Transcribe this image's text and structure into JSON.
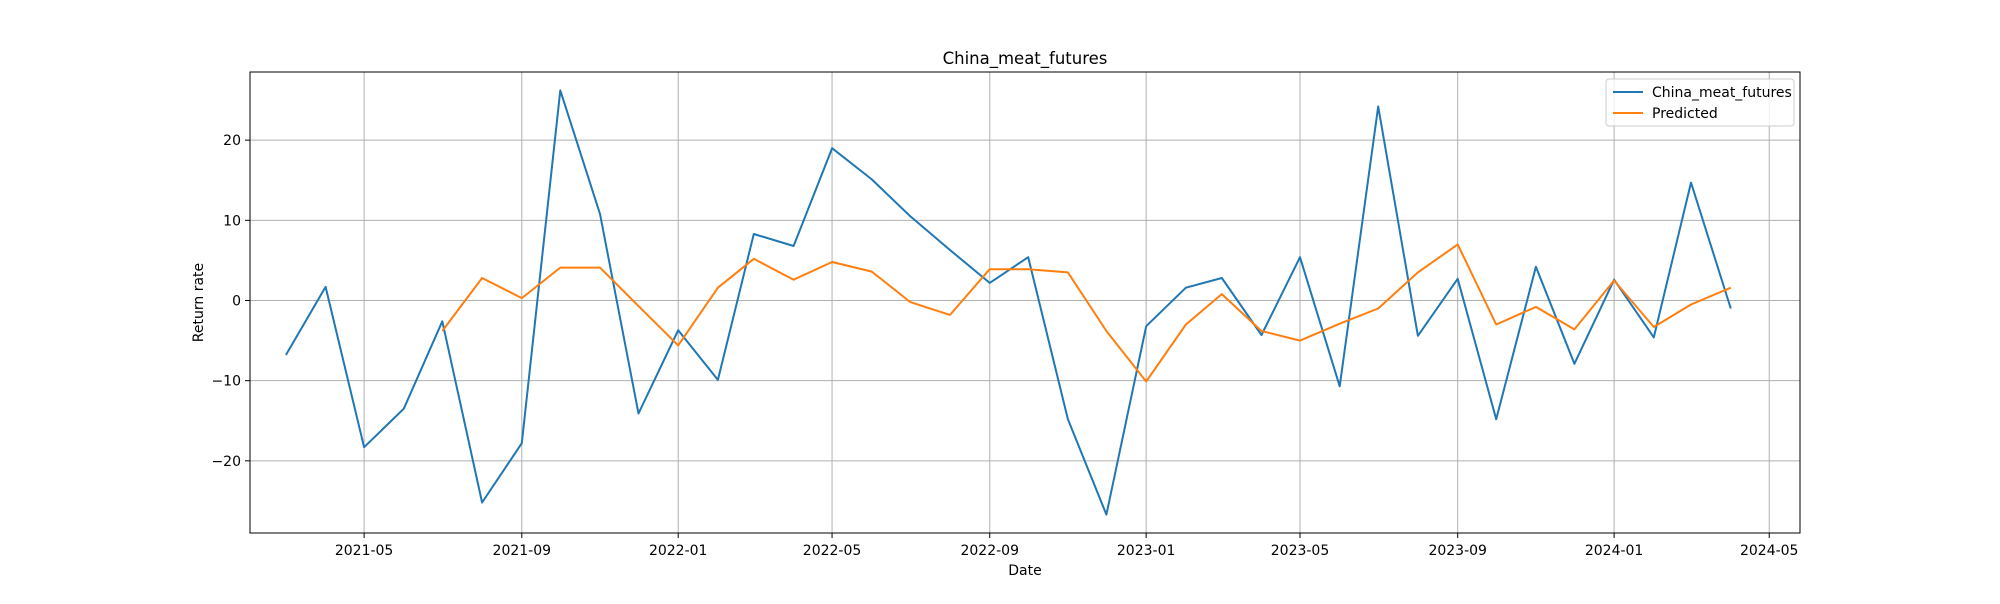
{
  "chart_data": {
    "type": "line",
    "title": "China_meat_futures",
    "xlabel": "Date",
    "ylabel": "Return rate",
    "grid": true,
    "legend_position": "top-right",
    "xlim": [
      "2021-02-01",
      "2024-05-25"
    ],
    "ylim": [
      -29,
      28.5
    ],
    "x_ticks": [
      "2021-05",
      "2021-09",
      "2022-01",
      "2022-05",
      "2022-09",
      "2023-01",
      "2023-05",
      "2023-09",
      "2024-01",
      "2024-05"
    ],
    "y_ticks": [
      -20,
      -10,
      0,
      10,
      20
    ],
    "y_tick_labels": [
      "−20",
      "−10",
      "0",
      "10",
      "20"
    ],
    "series": [
      {
        "name": "China_meat_futures",
        "color": "#1f77b4",
        "x": [
          "2021-03-01",
          "2021-04-01",
          "2021-05-01",
          "2021-06-01",
          "2021-07-01",
          "2021-08-01",
          "2021-09-01",
          "2021-10-01",
          "2021-11-01",
          "2021-12-01",
          "2022-01-01",
          "2022-02-01",
          "2022-03-01",
          "2022-04-01",
          "2022-05-01",
          "2022-06-01",
          "2022-07-01",
          "2022-08-01",
          "2022-09-01",
          "2022-10-01",
          "2022-11-01",
          "2022-12-01",
          "2023-01-01",
          "2023-02-01",
          "2023-03-01",
          "2023-04-01",
          "2023-05-01",
          "2023-06-01",
          "2023-07-01",
          "2023-08-01",
          "2023-09-01",
          "2023-10-01",
          "2023-11-01",
          "2023-12-01",
          "2024-01-01",
          "2024-02-01",
          "2024-03-01",
          "2024-04-01"
        ],
        "values": [
          -6.8,
          1.7,
          -18.3,
          -13.5,
          -2.6,
          -25.2,
          -17.8,
          26.2,
          10.8,
          -14.1,
          -3.7,
          -9.9,
          8.3,
          6.8,
          19.0,
          15.1,
          10.5,
          6.3,
          2.2,
          5.4,
          -14.8,
          -26.7,
          -3.2,
          1.6,
          2.8,
          -4.3,
          5.4,
          -10.7,
          24.2,
          -4.4,
          2.7,
          -14.8,
          4.2,
          -7.9,
          2.6,
          -4.6,
          14.7,
          -1.0
        ]
      },
      {
        "name": "Predicted",
        "color": "#ff7f0e",
        "x": [
          "2021-07-01",
          "2021-08-01",
          "2021-09-01",
          "2021-10-01",
          "2021-11-01",
          "2021-12-01",
          "2022-01-01",
          "2022-02-01",
          "2022-03-01",
          "2022-04-01",
          "2022-05-01",
          "2022-06-01",
          "2022-07-01",
          "2022-08-01",
          "2022-09-01",
          "2022-10-01",
          "2022-11-01",
          "2022-12-01",
          "2023-01-01",
          "2023-02-01",
          "2023-03-01",
          "2023-04-01",
          "2023-05-01",
          "2023-06-01",
          "2023-07-01",
          "2023-08-01",
          "2023-09-01",
          "2023-10-01",
          "2023-11-01",
          "2023-12-01",
          "2024-01-01",
          "2024-02-01",
          "2024-03-01",
          "2024-04-01"
        ],
        "values": [
          -3.8,
          2.8,
          0.3,
          4.1,
          4.1,
          -0.7,
          -5.6,
          1.6,
          5.2,
          2.6,
          4.8,
          3.6,
          -0.2,
          -1.8,
          3.9,
          3.9,
          3.5,
          -3.8,
          -10.1,
          -3.0,
          0.8,
          -3.8,
          -5.0,
          -2.9,
          -1.0,
          3.5,
          7.0,
          -3.0,
          -0.8,
          -3.6,
          2.5,
          -3.3,
          -0.5,
          1.6
        ]
      }
    ]
  }
}
